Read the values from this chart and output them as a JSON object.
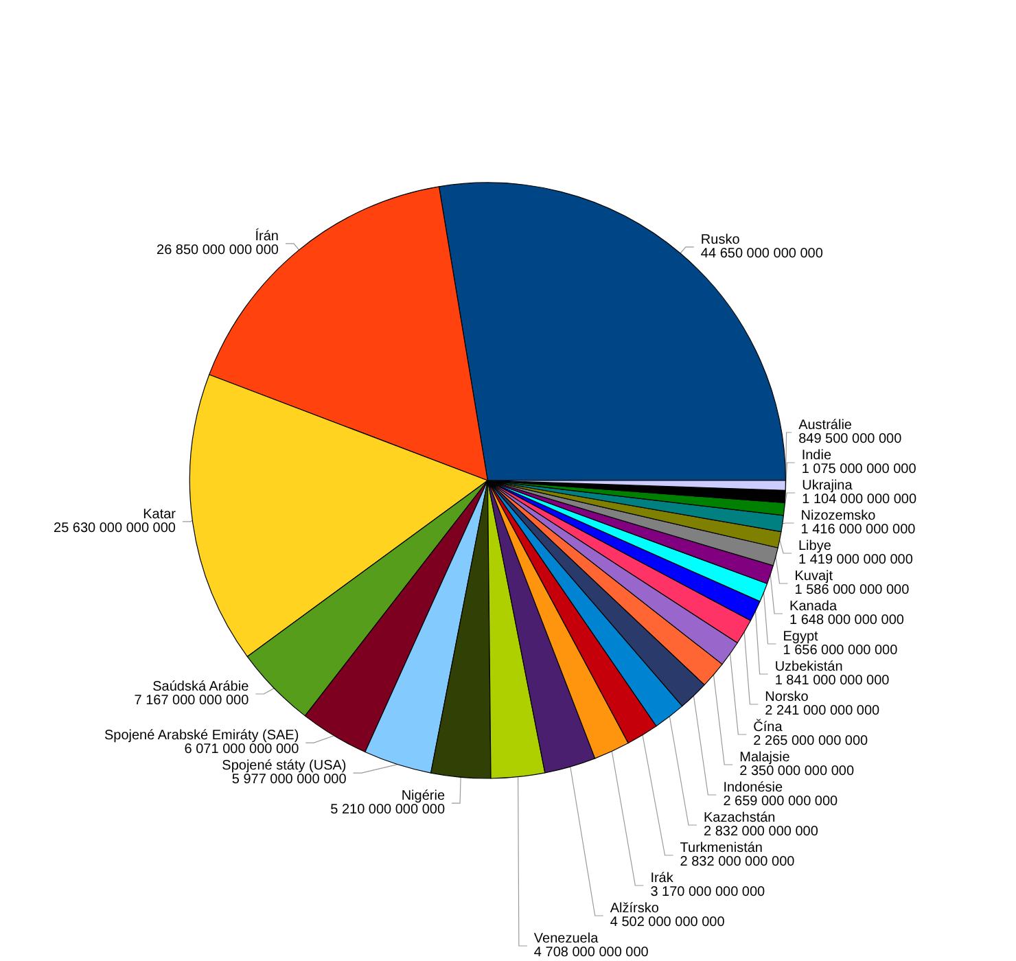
{
  "chart_data": {
    "type": "pie",
    "categories": [
      "Rusko",
      "Írán",
      "Katar",
      "Saúdská Arábie",
      "Spojené Arabské Emiráty (SAE)",
      "Spojené státy (USA)",
      "Nigérie",
      "Venezuela",
      "Alžírsko",
      "Irák",
      "Turkmenistán",
      "Kazachstán",
      "Indonésie",
      "Malajsie",
      "Čína",
      "Norsko",
      "Uzbekistán",
      "Egypt",
      "Kanada",
      "Kuvajt",
      "Libye",
      "Nizozemsko",
      "Ukrajina",
      "Indie",
      "Austrálie"
    ],
    "values": [
      44650000000000,
      26850000000000,
      25630000000000,
      7167000000000,
      6071000000000,
      5977000000000,
      5210000000000,
      4708000000000,
      4502000000000,
      3170000000000,
      2832000000000,
      2832000000000,
      2659000000000,
      2350000000000,
      2265000000000,
      2241000000000,
      1841000000000,
      1656000000000,
      1648000000000,
      1586000000000,
      1419000000000,
      1416000000000,
      1104000000000,
      1075000000000,
      849500000000
    ],
    "colors": [
      "#004586",
      "#ff420e",
      "#ffd320",
      "#579d1c",
      "#7e0021",
      "#83caff",
      "#314004",
      "#aecf00",
      "#4b1f6f",
      "#ff950e",
      "#c5000b",
      "#0084d1",
      "#2a3a6a",
      "#ff6633",
      "#9966cc",
      "#ff3366",
      "#0000ff",
      "#00ffff",
      "#800080",
      "#808080",
      "#808000",
      "#008080",
      "#008000",
      "#000000",
      "#ccccff"
    ],
    "data_labels": true,
    "legend": false
  }
}
